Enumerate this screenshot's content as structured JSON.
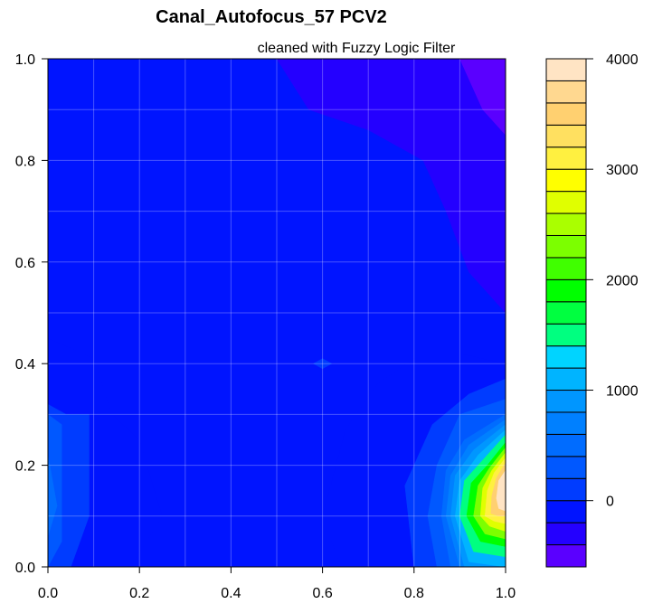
{
  "chart_data": {
    "type": "heatmap",
    "title": "Canal_Autofocus_57 PCV2",
    "subtitle": "cleaned with Fuzzy Logic Filter",
    "xlabel": "",
    "ylabel": "",
    "xlim": [
      0,
      1
    ],
    "ylim": [
      0,
      1
    ],
    "x_ticks": [
      "0.0",
      "0.2",
      "0.4",
      "0.6",
      "0.8",
      "1.0"
    ],
    "y_ticks": [
      "0.0",
      "0.2",
      "0.4",
      "0.6",
      "0.8",
      "1.0"
    ],
    "grid": true,
    "colorbar": {
      "range": [
        -600,
        4000
      ],
      "step": 200,
      "ticks": [
        "0",
        "1000",
        "2000",
        "3000",
        "4000"
      ],
      "colors": [
        "#5a00ff",
        "#2400ff",
        "#0014ff",
        "#003cff",
        "#0058ff",
        "#006cff",
        "#0080ff",
        "#0096ff",
        "#00b4ff",
        "#00d4ff",
        "#00ff80",
        "#00ff40",
        "#00ff00",
        "#40ff00",
        "#7cff00",
        "#aaff00",
        "#e0ff00",
        "#ffff00",
        "#fff040",
        "#ffe060",
        "#ffd070",
        "#ffd890",
        "#ffe4c4"
      ]
    },
    "regions": [
      {
        "value": -200,
        "points": [
          [
            0.0,
            0.45
          ],
          [
            0.05,
            0.43
          ],
          [
            0.1,
            0.41
          ],
          [
            0.14,
            0.3
          ],
          [
            0.2,
            0.25
          ],
          [
            0.25,
            0.1
          ],
          [
            0.18,
            0.0
          ],
          [
            0.0,
            0.0
          ]
        ]
      },
      {
        "value": -200,
        "points": [
          [
            1.0,
            0.4
          ],
          [
            0.9,
            0.42
          ],
          [
            0.8,
            0.41
          ],
          [
            0.72,
            0.36
          ],
          [
            0.65,
            0.27
          ],
          [
            0.6,
            0.1
          ],
          [
            0.64,
            0.0
          ],
          [
            1.0,
            0.0
          ]
        ]
      },
      {
        "value": -400,
        "points": [
          [
            0.5,
            1.0
          ],
          [
            0.57,
            0.9
          ],
          [
            0.7,
            0.86
          ],
          [
            0.82,
            0.8
          ],
          [
            0.87,
            0.7
          ],
          [
            0.92,
            0.58
          ],
          [
            1.0,
            0.5
          ],
          [
            1.0,
            1.0
          ]
        ]
      },
      {
        "value": -600,
        "points": [
          [
            0.9,
            1.0
          ],
          [
            0.95,
            0.9
          ],
          [
            1.0,
            0.85
          ],
          [
            1.0,
            1.0
          ]
        ]
      },
      {
        "value": 0,
        "points": [
          [
            0.58,
            0.4
          ],
          [
            0.6,
            0.41
          ],
          [
            0.62,
            0.4
          ],
          [
            0.6,
            0.39
          ]
        ]
      },
      {
        "value": 0,
        "points": [
          [
            0.0,
            0.32
          ],
          [
            0.04,
            0.3
          ],
          [
            0.09,
            0.3
          ],
          [
            0.09,
            0.1
          ],
          [
            0.05,
            0.0
          ],
          [
            0.0,
            0.0
          ]
        ]
      },
      {
        "value": 0,
        "points": [
          [
            1.0,
            0.37
          ],
          [
            0.92,
            0.34
          ],
          [
            0.84,
            0.28
          ],
          [
            0.78,
            0.16
          ],
          [
            0.8,
            0.0
          ],
          [
            1.0,
            0.0
          ]
        ]
      },
      {
        "value": 200,
        "points": [
          [
            0.0,
            0.3
          ],
          [
            0.03,
            0.28
          ],
          [
            0.03,
            0.05
          ],
          [
            0.0,
            0.0
          ]
        ]
      },
      {
        "value": 200,
        "points": [
          [
            1.0,
            0.33
          ],
          [
            0.9,
            0.3
          ],
          [
            0.85,
            0.2
          ],
          [
            0.83,
            0.1
          ],
          [
            0.85,
            0.0
          ],
          [
            1.0,
            0.0
          ]
        ]
      },
      {
        "value": 400,
        "points": [
          [
            0.0,
            0.22
          ],
          [
            0.02,
            0.12
          ],
          [
            0.0,
            0.06
          ]
        ]
      },
      {
        "value": 400,
        "points": [
          [
            1.0,
            0.3
          ],
          [
            0.91,
            0.25
          ],
          [
            0.87,
            0.19
          ],
          [
            0.86,
            0.1
          ],
          [
            0.88,
            0.0
          ],
          [
            1.0,
            0.0
          ]
        ]
      },
      {
        "value": 600,
        "points": [
          [
            1.0,
            0.29
          ],
          [
            0.92,
            0.24
          ],
          [
            0.88,
            0.18
          ],
          [
            0.87,
            0.1
          ],
          [
            0.9,
            0.0
          ],
          [
            1.0,
            0.0
          ]
        ]
      },
      {
        "value": 800,
        "points": [
          [
            1.0,
            0.28
          ],
          [
            0.93,
            0.23
          ],
          [
            0.89,
            0.18
          ],
          [
            0.88,
            0.1
          ],
          [
            0.91,
            0.0
          ],
          [
            1.0,
            0.0
          ]
        ]
      },
      {
        "value": 1000,
        "points": [
          [
            1.0,
            0.27
          ],
          [
            0.94,
            0.22
          ],
          [
            0.9,
            0.17
          ],
          [
            0.89,
            0.1
          ],
          [
            0.92,
            0.01
          ],
          [
            1.0,
            0.0
          ]
        ]
      },
      {
        "value": 1400,
        "points": [
          [
            1.0,
            0.26
          ],
          [
            0.95,
            0.21
          ],
          [
            0.91,
            0.17
          ],
          [
            0.9,
            0.1
          ],
          [
            0.93,
            0.03
          ],
          [
            1.0,
            0.02
          ]
        ]
      },
      {
        "value": 1800,
        "points": [
          [
            1.0,
            0.245
          ],
          [
            0.96,
            0.2
          ],
          [
            0.925,
            0.165
          ],
          [
            0.915,
            0.1
          ],
          [
            0.945,
            0.05
          ],
          [
            1.0,
            0.04
          ]
        ]
      },
      {
        "value": 2200,
        "points": [
          [
            1.0,
            0.235
          ],
          [
            0.965,
            0.195
          ],
          [
            0.94,
            0.16
          ],
          [
            0.93,
            0.1
          ],
          [
            0.955,
            0.065
          ],
          [
            1.0,
            0.055
          ]
        ]
      },
      {
        "value": 2600,
        "points": [
          [
            1.0,
            0.225
          ],
          [
            0.97,
            0.19
          ],
          [
            0.95,
            0.155
          ],
          [
            0.945,
            0.1
          ],
          [
            0.965,
            0.08
          ],
          [
            1.0,
            0.07
          ]
        ]
      },
      {
        "value": 3000,
        "points": [
          [
            1.0,
            0.215
          ],
          [
            0.975,
            0.185
          ],
          [
            0.96,
            0.15
          ],
          [
            0.955,
            0.1
          ],
          [
            0.975,
            0.09
          ],
          [
            1.0,
            0.085
          ]
        ]
      },
      {
        "value": 3400,
        "points": [
          [
            1.0,
            0.205
          ],
          [
            0.98,
            0.175
          ],
          [
            0.97,
            0.14
          ],
          [
            0.968,
            0.105
          ],
          [
            0.985,
            0.1
          ],
          [
            1.0,
            0.1
          ]
        ]
      },
      {
        "value": 3800,
        "points": [
          [
            1.0,
            0.19
          ],
          [
            0.985,
            0.17
          ],
          [
            0.98,
            0.135
          ],
          [
            0.985,
            0.115
          ],
          [
            1.0,
            0.11
          ]
        ]
      }
    ],
    "background_value": -200
  }
}
